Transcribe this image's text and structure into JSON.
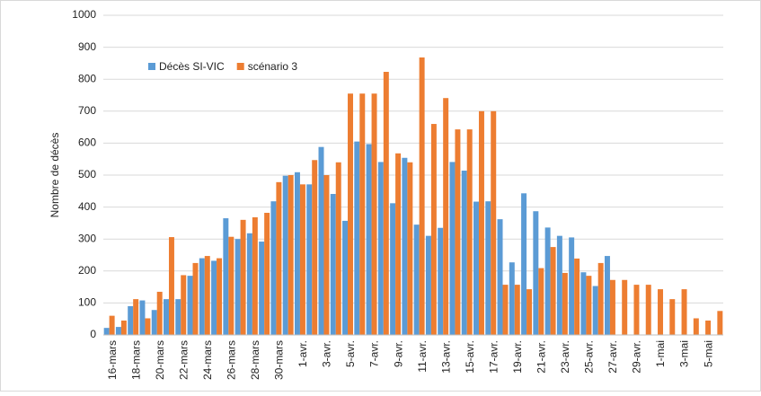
{
  "chart_data": {
    "type": "bar",
    "y_label": "Nombre de décès",
    "categories": [
      "16-mars",
      null,
      "18-mars",
      null,
      "20-mars",
      null,
      "22-mars",
      null,
      "24-mars",
      null,
      "26-mars",
      null,
      "28-mars",
      null,
      "30-mars",
      null,
      "1-avr.",
      null,
      "3-avr.",
      null,
      "5-avr.",
      null,
      "7-avr.",
      null,
      "9-avr.",
      null,
      "11-avr.",
      null,
      "13-avr.",
      null,
      "15-avr.",
      null,
      "17-avr.",
      null,
      "19-avr.",
      null,
      "21-avr.",
      null,
      "23-avr.",
      null,
      "25-avr.",
      null,
      "27-avr.",
      null,
      "29-avr.",
      null,
      "1-mai",
      null,
      "3-mai",
      null,
      "5-mai",
      null
    ],
    "series": [
      {
        "name": "Décès SI-VIC",
        "color": "#5b9bd5",
        "values": [
          22,
          25,
          90,
          108,
          78,
          112,
          112,
          185,
          240,
          232,
          365,
          300,
          318,
          292,
          418,
          498,
          509,
          471,
          588,
          441,
          357,
          605,
          597,
          541,
          412,
          554,
          345,
          310,
          335,
          541,
          514,
          417,
          418,
          362,
          227,
          443,
          387,
          336,
          310,
          305,
          196,
          153,
          247,
          null,
          null,
          null,
          null,
          null,
          null,
          null,
          null,
          null
        ]
      },
      {
        "name": "scénario 3",
        "color": "#ed7d31",
        "values": [
          60,
          45,
          112,
          52,
          135,
          306,
          187,
          225,
          247,
          240,
          307,
          360,
          368,
          382,
          478,
          500,
          471,
          547,
          500,
          540,
          755,
          755,
          755,
          823,
          568,
          540,
          868,
          660,
          741,
          643,
          643,
          700,
          700,
          157,
          157,
          143,
          209,
          275,
          194,
          239,
          185,
          225,
          172,
          172,
          157,
          157,
          143,
          112,
          143,
          52,
          45,
          75
        ]
      }
    ],
    "ylim": [
      0,
      1000
    ],
    "yticks": [
      0,
      100,
      200,
      300,
      400,
      500,
      600,
      700,
      800,
      900,
      1000
    ],
    "grid": true
  }
}
